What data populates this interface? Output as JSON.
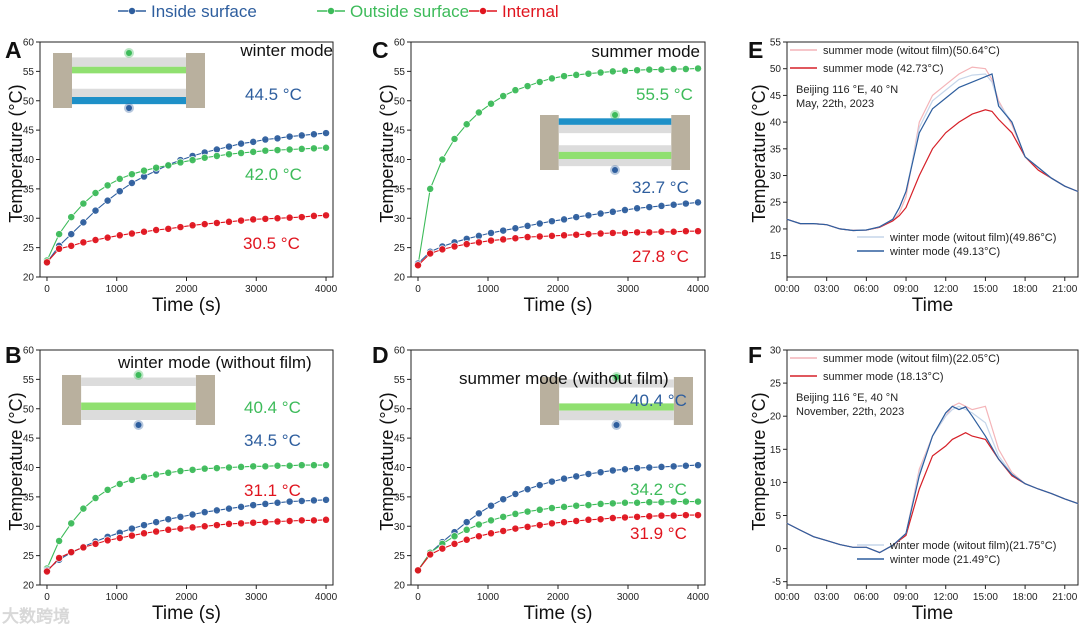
{
  "legend": [
    {
      "label": "Inside surface",
      "color": "#2e5e9e"
    },
    {
      "label": "Outside surface",
      "color": "#3dbb5a"
    },
    {
      "label": "Internal",
      "color": "#e0141e"
    }
  ],
  "watermark": "大数跨境",
  "chart_data": [
    {
      "id": "A",
      "letter": "A",
      "type": "line",
      "title": "winter mode",
      "xlabel": "Time (s)",
      "ylabel": "Temperature (°C)",
      "xlim": [
        -100,
        4100
      ],
      "ylim": [
        20,
        60
      ],
      "xticks": [
        0,
        1000,
        2000,
        3000,
        4000
      ],
      "yticks": [
        20,
        25,
        30,
        35,
        40,
        45,
        50,
        55,
        60
      ],
      "series": [
        {
          "name": "Inside surface",
          "color": "#2e5e9e",
          "end_label": "44.5 °C",
          "values": [
            22.5,
            25.3,
            27.3,
            29.3,
            31.3,
            33.0,
            34.6,
            36.0,
            37.1,
            38.1,
            39.1,
            39.9,
            40.6,
            41.2,
            41.7,
            42.2,
            42.7,
            43.0,
            43.4,
            43.6,
            43.9,
            44.1,
            44.3,
            44.5
          ]
        },
        {
          "name": "Outside surface",
          "color": "#3dbb5a",
          "end_label": "42.0 °C",
          "values": [
            22.8,
            27.3,
            30.2,
            32.5,
            34.3,
            35.6,
            36.7,
            37.5,
            38.1,
            38.6,
            39.0,
            39.5,
            39.9,
            40.3,
            40.6,
            40.9,
            41.1,
            41.3,
            41.5,
            41.6,
            41.7,
            41.8,
            41.9,
            42.0
          ]
        },
        {
          "name": "Internal",
          "color": "#e0141e",
          "end_label": "30.5 °C",
          "values": [
            22.5,
            24.8,
            25.3,
            25.9,
            26.3,
            26.7,
            27.1,
            27.4,
            27.7,
            28.0,
            28.2,
            28.5,
            28.8,
            29.0,
            29.2,
            29.4,
            29.6,
            29.8,
            29.9,
            30.0,
            30.1,
            30.2,
            30.4,
            30.5
          ]
        }
      ]
    },
    {
      "id": "B",
      "letter": "B",
      "type": "line",
      "title": "winter mode (without film)",
      "xlabel": "Time (s)",
      "ylabel": "Temperature (°C)",
      "xlim": [
        -100,
        4100
      ],
      "ylim": [
        20,
        60
      ],
      "xticks": [
        0,
        1000,
        2000,
        3000,
        4000
      ],
      "yticks": [
        20,
        25,
        30,
        35,
        40,
        45,
        50,
        55,
        60
      ],
      "series": [
        {
          "name": "Outside surface",
          "color": "#3dbb5a",
          "end_label": "40.4 °C",
          "values": [
            22.8,
            27.5,
            30.5,
            33.0,
            34.8,
            36.2,
            37.2,
            37.9,
            38.4,
            38.8,
            39.1,
            39.4,
            39.6,
            39.8,
            39.9,
            40.0,
            40.1,
            40.2,
            40.2,
            40.3,
            40.3,
            40.4,
            40.4,
            40.4
          ]
        },
        {
          "name": "Inside surface",
          "color": "#2e5e9e",
          "end_label": "34.5 °C",
          "values": [
            22.5,
            24.3,
            25.5,
            26.5,
            27.4,
            28.2,
            28.9,
            29.6,
            30.2,
            30.7,
            31.2,
            31.6,
            32.0,
            32.4,
            32.7,
            33.0,
            33.3,
            33.6,
            33.8,
            34.0,
            34.2,
            34.3,
            34.4,
            34.5
          ]
        },
        {
          "name": "Internal",
          "color": "#e0141e",
          "end_label": "31.1 °C",
          "values": [
            22.3,
            24.6,
            25.6,
            26.4,
            27.0,
            27.6,
            28.0,
            28.4,
            28.8,
            29.1,
            29.4,
            29.6,
            29.8,
            30.0,
            30.2,
            30.4,
            30.5,
            30.6,
            30.7,
            30.8,
            30.9,
            31.0,
            31.0,
            31.1
          ]
        }
      ]
    },
    {
      "id": "C",
      "letter": "C",
      "type": "line",
      "title": "summer mode",
      "xlabel": "Time (s)",
      "ylabel": "Temperature (°C)",
      "xlim": [
        -100,
        4100
      ],
      "ylim": [
        20,
        60
      ],
      "xticks": [
        0,
        1000,
        2000,
        3000,
        4000
      ],
      "yticks": [
        20,
        25,
        30,
        35,
        40,
        45,
        50,
        55,
        60
      ],
      "series": [
        {
          "name": "Outside surface",
          "color": "#3dbb5a",
          "end_label": "55.5 °C",
          "values": [
            22.0,
            35.0,
            40.0,
            43.5,
            46.0,
            48.0,
            49.5,
            50.8,
            51.8,
            52.5,
            53.2,
            53.8,
            54.2,
            54.4,
            54.6,
            54.8,
            55.0,
            55.1,
            55.2,
            55.3,
            55.3,
            55.4,
            55.4,
            55.5
          ]
        },
        {
          "name": "Inside surface",
          "color": "#2e5e9e",
          "end_label": "32.7 °C",
          "values": [
            22.3,
            24.3,
            25.2,
            25.9,
            26.5,
            27.0,
            27.5,
            27.9,
            28.3,
            28.7,
            29.1,
            29.5,
            29.8,
            30.2,
            30.5,
            30.8,
            31.1,
            31.4,
            31.7,
            31.9,
            32.1,
            32.3,
            32.5,
            32.7
          ]
        },
        {
          "name": "Internal",
          "color": "#e0141e",
          "end_label": "27.8 °C",
          "values": [
            22.0,
            24.0,
            24.7,
            25.2,
            25.6,
            25.9,
            26.2,
            26.4,
            26.6,
            26.8,
            26.9,
            27.0,
            27.1,
            27.2,
            27.3,
            27.4,
            27.5,
            27.5,
            27.6,
            27.6,
            27.7,
            27.7,
            27.8,
            27.8
          ]
        }
      ]
    },
    {
      "id": "D",
      "letter": "D",
      "type": "line",
      "title": "summer mode (without film)",
      "xlabel": "Time (s)",
      "ylabel": "Temperature (°C)",
      "xlim": [
        -100,
        4100
      ],
      "ylim": [
        20,
        60
      ],
      "xticks": [
        0,
        1000,
        2000,
        3000,
        4000
      ],
      "yticks": [
        20,
        25,
        30,
        35,
        40,
        45,
        50,
        55,
        60
      ],
      "series": [
        {
          "name": "Inside surface",
          "color": "#2e5e9e",
          "end_label": "40.4 °C",
          "values": [
            22.5,
            25.5,
            27.3,
            29.0,
            30.7,
            32.2,
            33.5,
            34.6,
            35.5,
            36.3,
            37.0,
            37.6,
            38.1,
            38.5,
            38.9,
            39.2,
            39.5,
            39.7,
            39.9,
            40.0,
            40.1,
            40.2,
            40.3,
            40.4
          ]
        },
        {
          "name": "Outside surface",
          "color": "#3dbb5a",
          "end_label": "34.2 °C",
          "values": [
            22.5,
            25.5,
            27.0,
            28.3,
            29.4,
            30.3,
            31.0,
            31.6,
            32.1,
            32.5,
            32.8,
            33.1,
            33.3,
            33.5,
            33.6,
            33.8,
            33.9,
            34.0,
            34.0,
            34.1,
            34.1,
            34.2,
            34.2,
            34.2
          ]
        },
        {
          "name": "Internal",
          "color": "#e0141e",
          "end_label": "31.9 °C",
          "values": [
            22.5,
            25.2,
            26.2,
            27.0,
            27.7,
            28.3,
            28.8,
            29.2,
            29.6,
            29.9,
            30.2,
            30.5,
            30.7,
            30.9,
            31.1,
            31.2,
            31.4,
            31.5,
            31.6,
            31.7,
            31.8,
            31.8,
            31.9,
            31.9
          ]
        }
      ]
    },
    {
      "id": "E",
      "letter": "E",
      "type": "line",
      "title": "",
      "xlabel": "Time",
      "ylabel": "Temperature (°C)",
      "notes": [
        "Beijing 116 °E, 40 °N",
        "May, 22th, 2023"
      ],
      "xlim": [
        0,
        22
      ],
      "ylim": [
        11,
        55
      ],
      "xticks": [
        0,
        3,
        6,
        9,
        12,
        15,
        18,
        21
      ],
      "xticklabels": [
        "00:00",
        "03:00",
        "06:00",
        "09:00",
        "12:00",
        "15:00",
        "18:00",
        "21:00"
      ],
      "yticks": [
        15,
        20,
        25,
        30,
        35,
        40,
        45,
        50,
        55
      ],
      "x": [
        0,
        1,
        2,
        3,
        4,
        5,
        6,
        7,
        8,
        8.5,
        9,
        10,
        11,
        12,
        13,
        14,
        15,
        15.5,
        16,
        17,
        18,
        19,
        20,
        21,
        22
      ],
      "series": [
        {
          "name": "summer mode (witout film)(50.64°C)",
          "color": "#f4b4b8",
          "legend": "top",
          "values": [
            21.8,
            21,
            21,
            20.8,
            20,
            19.7,
            19.8,
            20.3,
            21.5,
            23,
            26,
            40,
            45,
            47,
            49,
            50.3,
            50,
            48,
            44,
            39.5,
            33.5,
            31,
            29.5,
            28,
            27
          ]
        },
        {
          "name": "summer mode (42.73°C)",
          "color": "#d62028",
          "legend": "top",
          "values": [
            21.8,
            21,
            21,
            20.8,
            20,
            19.7,
            19.8,
            20.3,
            21.5,
            22.5,
            24,
            30,
            35,
            38,
            40,
            41.5,
            42.3,
            42,
            40.5,
            38,
            33.5,
            31,
            29.5,
            28,
            27
          ]
        },
        {
          "name": "winter mode (witout film)(49.86°C)",
          "color": "#c6d6ea",
          "legend": "bottom",
          "values": [
            21.8,
            21,
            21,
            20.8,
            20,
            19.7,
            19.8,
            20.4,
            21.8,
            24,
            27,
            39,
            44,
            46,
            48,
            48.8,
            49,
            47.5,
            43.5,
            40,
            33.5,
            31.5,
            29.5,
            28,
            27
          ]
        },
        {
          "name": "winter mode (49.13°C)",
          "color": "#2e5e9e",
          "legend": "bottom",
          "values": [
            21.8,
            21,
            21,
            20.8,
            20,
            19.7,
            19.8,
            20.4,
            21.8,
            24,
            27,
            38,
            42.5,
            44.5,
            46.5,
            47.5,
            48.5,
            49,
            43,
            40,
            33.5,
            31.5,
            29.5,
            28,
            27
          ]
        }
      ]
    },
    {
      "id": "F",
      "letter": "F",
      "type": "line",
      "title": "",
      "xlabel": "Time",
      "ylabel": "Temperature (°C)",
      "notes": [
        "Beijing 116 °E, 40 °N",
        "November, 22th, 2023"
      ],
      "xlim": [
        0,
        22
      ],
      "ylim": [
        -5.5,
        30
      ],
      "xticks": [
        0,
        3,
        6,
        9,
        12,
        15,
        18,
        21
      ],
      "xticklabels": [
        "00:00",
        "03:00",
        "06:00",
        "09:00",
        "12:00",
        "15:00",
        "18:00",
        "21:00"
      ],
      "yticks": [
        -5,
        0,
        5,
        10,
        15,
        20,
        25,
        30
      ],
      "x": [
        0,
        1,
        2,
        3,
        4,
        5,
        6,
        7,
        8,
        9,
        10,
        11,
        12,
        12.5,
        13,
        13.5,
        14,
        15,
        16,
        17,
        18,
        19,
        20,
        21,
        22
      ],
      "series": [
        {
          "name": "summer mode (witout film)(22.05°C)",
          "color": "#f4b4b8",
          "legend": "top",
          "values": [
            3.8,
            2.8,
            1.8,
            1.2,
            0.6,
            0.2,
            0.2,
            -0.6,
            0.5,
            2.2,
            12,
            17,
            20,
            21.5,
            22,
            21.5,
            21,
            21.5,
            15,
            11.5,
            9.8,
            9,
            8.3,
            7.5,
            6.8
          ]
        },
        {
          "name": "summer mode (18.13°C)",
          "color": "#d62028",
          "legend": "top",
          "values": [
            3.8,
            2.8,
            1.8,
            1.2,
            0.6,
            0.2,
            0.2,
            -0.6,
            0.5,
            2,
            9,
            14,
            15.5,
            16.5,
            17,
            17.5,
            17,
            16.5,
            13.5,
            11,
            9.8,
            9,
            8.3,
            7.5,
            6.8
          ]
        },
        {
          "name": "winter mode (witout film)(21.75°C)",
          "color": "#c6d6ea",
          "legend": "bottom",
          "values": [
            3.8,
            2.8,
            1.8,
            1.2,
            0.6,
            0.2,
            0.2,
            -0.6,
            0.5,
            2.3,
            11.5,
            17,
            20,
            21,
            21.5,
            21,
            20.5,
            19,
            14,
            11.3,
            9.8,
            9,
            8.3,
            7.5,
            6.8
          ]
        },
        {
          "name": "winter mode (21.49°C)",
          "color": "#2e5e9e",
          "legend": "bottom",
          "values": [
            3.8,
            2.8,
            1.8,
            1.2,
            0.6,
            0.2,
            0.2,
            -0.6,
            0.5,
            2.3,
            11,
            17,
            20.5,
            21.5,
            21,
            21.4,
            20,
            17,
            13.5,
            11.2,
            9.8,
            9,
            8.3,
            7.5,
            6.8
          ]
        }
      ]
    }
  ]
}
